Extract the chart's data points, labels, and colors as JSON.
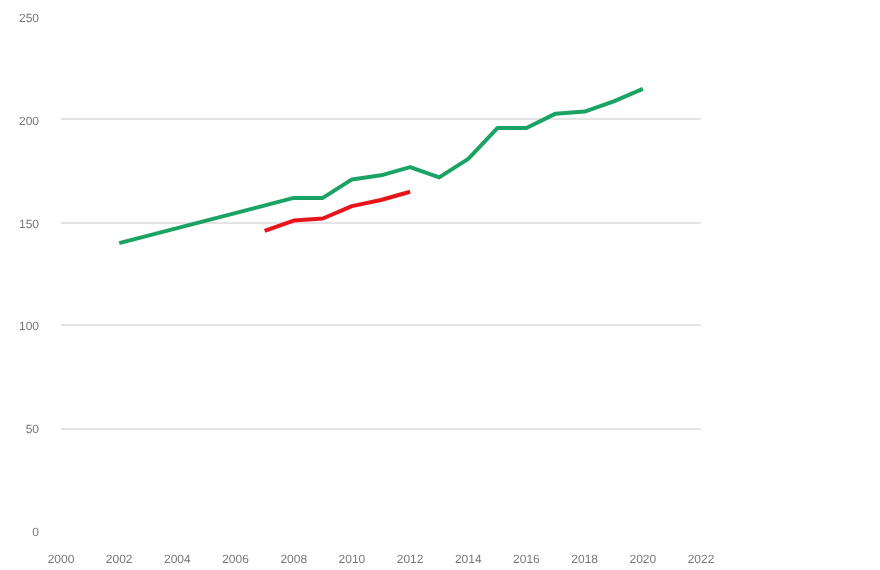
{
  "chart_data": {
    "type": "line",
    "x": [
      2002,
      2008,
      2009,
      2010,
      2011,
      2012,
      2013,
      2014,
      2015,
      2016,
      2017,
      2018,
      2019,
      2020
    ],
    "series": [
      {
        "color": "#1aa364",
        "values": [
          140,
          162,
          162,
          171,
          173,
          177,
          172,
          181,
          196,
          196,
          203,
          204,
          209,
          215
        ]
      },
      {
        "color": "#e8141c",
        "x": [
          2007,
          2008,
          2009,
          2010,
          2011,
          2012
        ],
        "values": [
          146,
          151,
          152,
          158,
          161,
          165
        ]
      }
    ],
    "xlim": [
      2000,
      2022
    ],
    "xticks": [
      2000,
      2002,
      2004,
      2006,
      2008,
      2010,
      2012,
      2014,
      2016,
      2018,
      2020,
      2022
    ],
    "ylim": [
      0,
      250
    ],
    "yticks": [
      0,
      50,
      100,
      150,
      200,
      250
    ],
    "grid": "y",
    "marker": "none",
    "line_style": "solid"
  }
}
